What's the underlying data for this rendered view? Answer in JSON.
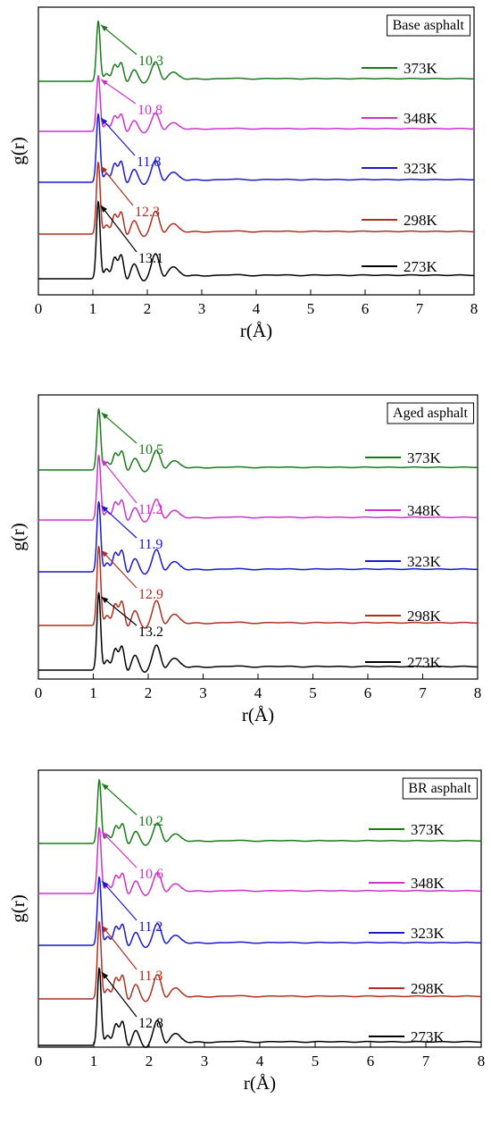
{
  "chart_data": [
    {
      "type": "line",
      "title": "Base asphalt",
      "xlabel": "r(Å)",
      "ylabel": "g(r)",
      "xlim": [
        0,
        8
      ],
      "xticks": [
        "0",
        "1",
        "2",
        "3",
        "4",
        "5",
        "6",
        "7",
        "8"
      ],
      "legend_position": "right",
      "series": [
        {
          "name": "373K",
          "color": "#1a7a1a",
          "peak_r": 1.1,
          "peak_value": "10.3"
        },
        {
          "name": "348K",
          "color": "#cc33cc",
          "peak_r": 1.1,
          "peak_value": "10.8"
        },
        {
          "name": "323K",
          "color": "#1a1acc",
          "peak_r": 1.1,
          "peak_value": "11.8"
        },
        {
          "name": "298K",
          "color": "#b03020",
          "peak_r": 1.1,
          "peak_value": "12.3"
        },
        {
          "name": "273K",
          "color": "#000000",
          "peak_r": 1.1,
          "peak_value": "13.1"
        }
      ]
    },
    {
      "type": "line",
      "title": "Aged asphalt",
      "xlabel": "r(Å)",
      "ylabel": "g(r)",
      "xlim": [
        0,
        8
      ],
      "xticks": [
        "0",
        "1",
        "2",
        "3",
        "4",
        "5",
        "6",
        "7",
        "8"
      ],
      "legend_position": "right",
      "series": [
        {
          "name": "373K",
          "color": "#1a7a1a",
          "peak_r": 1.1,
          "peak_value": "10.5"
        },
        {
          "name": "348K",
          "color": "#cc33cc",
          "peak_r": 1.1,
          "peak_value": "11.2"
        },
        {
          "name": "323K",
          "color": "#1a1acc",
          "peak_r": 1.1,
          "peak_value": "11.9"
        },
        {
          "name": "298K",
          "color": "#b03020",
          "peak_r": 1.1,
          "peak_value": "12.9"
        },
        {
          "name": "273K",
          "color": "#000000",
          "peak_r": 1.1,
          "peak_value": "13.2"
        }
      ]
    },
    {
      "type": "line",
      "title": "BR asphalt",
      "xlabel": "r(Å)",
      "ylabel": "g(r)",
      "xlim": [
        0,
        8
      ],
      "xticks": [
        "0",
        "1",
        "2",
        "3",
        "4",
        "5",
        "6",
        "7",
        "8"
      ],
      "legend_position": "right",
      "series": [
        {
          "name": "373K",
          "color": "#1a7a1a",
          "peak_r": 1.1,
          "peak_value": "10.2"
        },
        {
          "name": "348K",
          "color": "#cc33cc",
          "peak_r": 1.1,
          "peak_value": "10.6"
        },
        {
          "name": "323K",
          "color": "#1a1acc",
          "peak_r": 1.1,
          "peak_value": "11.2"
        },
        {
          "name": "298K",
          "color": "#b03020",
          "peak_r": 1.1,
          "peak_value": "11.3"
        },
        {
          "name": "273K",
          "color": "#000000",
          "peak_r": 1.1,
          "peak_value": "12.8"
        }
      ]
    }
  ]
}
